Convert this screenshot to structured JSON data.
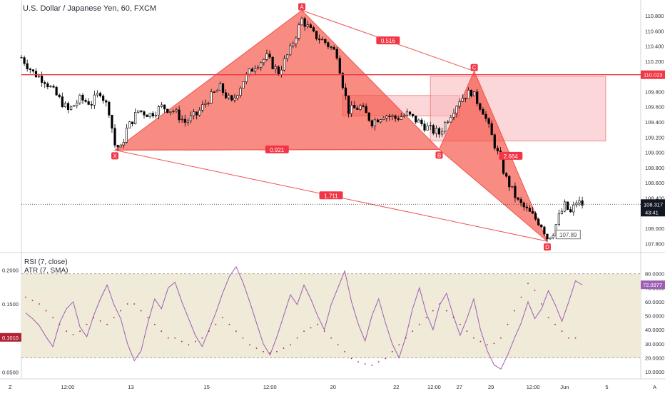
{
  "header": {
    "title": "U.S. Dollar / Japanese Yen, 60, FXCM"
  },
  "colors": {
    "pattern_fill": "#f44336",
    "pattern_line": "#ef5350",
    "resistance_line": "#f23645",
    "zone_fill": "#f7b7b9",
    "rsi_line": "#9c5fb5",
    "atr_dots": "#b22234",
    "band_fill": "#f0ead8",
    "candle": "#000000",
    "axis_text": "#2a2e39"
  },
  "chart_data": [
    {
      "type": "candlestick",
      "title": "U.S. Dollar / Japanese Yen, 60, FXCM",
      "ylim": [
        107.7,
        110.95
      ],
      "x_ticks": [
        "12:00",
        "13",
        "15",
        "12:00",
        "20",
        "22",
        "12:00",
        "27",
        "29",
        "12:00",
        "Jun",
        "5",
        "12:00"
      ],
      "y_ticks": [
        "110.800",
        "110.600",
        "110.400",
        "110.200",
        "109.800",
        "109.600",
        "109.400",
        "109.200",
        "109.000",
        "108.800",
        "108.600",
        "108.400",
        "108.000",
        "107.800"
      ],
      "close_path": [
        [
          0,
          110.25
        ],
        [
          4,
          110.05
        ],
        [
          8,
          109.95
        ],
        [
          12,
          109.75
        ],
        [
          16,
          109.55
        ],
        [
          20,
          109.7
        ],
        [
          24,
          109.65
        ],
        [
          27,
          109.8
        ],
        [
          30,
          109.55
        ],
        [
          32,
          109.1
        ],
        [
          34,
          109.05
        ],
        [
          36,
          109.3
        ],
        [
          40,
          109.55
        ],
        [
          44,
          109.5
        ],
        [
          48,
          109.6
        ],
        [
          52,
          109.55
        ],
        [
          56,
          109.4
        ],
        [
          60,
          109.5
        ],
        [
          64,
          109.7
        ],
        [
          68,
          109.85
        ],
        [
          72,
          109.65
        ],
        [
          76,
          109.95
        ],
        [
          80,
          110.15
        ],
        [
          84,
          110.25
        ],
        [
          88,
          110.05
        ],
        [
          92,
          110.35
        ],
        [
          96,
          110.75
        ],
        [
          100,
          110.55
        ],
        [
          104,
          110.45
        ],
        [
          108,
          110.3
        ],
        [
          110,
          109.9
        ],
        [
          112,
          109.55
        ],
        [
          116,
          109.6
        ],
        [
          120,
          109.4
        ],
        [
          124,
          109.5
        ],
        [
          128,
          109.45
        ],
        [
          132,
          109.5
        ],
        [
          136,
          109.4
        ],
        [
          140,
          109.3
        ],
        [
          143,
          109.25
        ],
        [
          146,
          109.45
        ],
        [
          150,
          109.7
        ],
        [
          154,
          109.8
        ],
        [
          158,
          109.55
        ],
        [
          162,
          109.1
        ],
        [
          166,
          108.65
        ],
        [
          170,
          108.35
        ],
        [
          174,
          108.2
        ],
        [
          178,
          108.05
        ],
        [
          180,
          107.88
        ],
        [
          182,
          107.95
        ],
        [
          184,
          108.15
        ],
        [
          186,
          108.3
        ],
        [
          188,
          108.2
        ],
        [
          190,
          108.35
        ],
        [
          192,
          108.317
        ]
      ],
      "current_price": "108.317",
      "countdown": "43:41",
      "resistance_level": "110.023",
      "harmonic_pattern": {
        "points": [
          {
            "label": "X",
            "t": 32,
            "price": 109.03
          },
          {
            "label": "A",
            "t": 96,
            "price": 110.87
          },
          {
            "label": "B",
            "t": 143,
            "price": 109.04
          },
          {
            "label": "C",
            "t": 155,
            "price": 110.07
          },
          {
            "label": "D",
            "t": 180,
            "price": 107.83
          }
        ],
        "ratios": {
          "XAB": "0.921",
          "XAD": "1.711",
          "AC": "0.516",
          "BCD": "2.664"
        },
        "box_value": "107.89"
      },
      "zones": [
        {
          "t0": 110,
          "t1": 150,
          "p0": 109.48,
          "p1": 109.75
        },
        {
          "t0": 140,
          "t1": 200,
          "p0": 109.15,
          "p1": 110.0
        }
      ]
    },
    {
      "type": "line",
      "series": [
        {
          "name": "RSI (7, close)",
          "axis": "right",
          "values": [
            52,
            48,
            43,
            35,
            28,
            45,
            55,
            60,
            42,
            35,
            50,
            62,
            72,
            58,
            48,
            30,
            18,
            25,
            45,
            62,
            55,
            70,
            74,
            60,
            48,
            36,
            28,
            40,
            52,
            66,
            78,
            85,
            74,
            60,
            45,
            30,
            22,
            35,
            50,
            65,
            58,
            72,
            62,
            50,
            40,
            58,
            70,
            82,
            60,
            44,
            32,
            50,
            62,
            45,
            30,
            20,
            35,
            55,
            70,
            52,
            40,
            58,
            66,
            50,
            36,
            48,
            62,
            40,
            25,
            15,
            12,
            22,
            34,
            45,
            60,
            48,
            55,
            68,
            58,
            46,
            60,
            75,
            72
          ]
        },
        {
          "name": "ATR (7, SMA)",
          "axis": "left",
          "values": [
            0.16,
            0.155,
            0.15,
            0.14,
            0.13,
            0.12,
            0.11,
            0.105,
            0.11,
            0.12,
            0.13,
            0.125,
            0.12,
            0.13,
            0.14,
            0.15,
            0.15,
            0.14,
            0.13,
            0.12,
            0.11,
            0.1,
            0.1,
            0.095,
            0.09,
            0.095,
            0.1,
            0.11,
            0.12,
            0.13,
            0.12,
            0.11,
            0.1,
            0.09,
            0.085,
            0.08,
            0.078,
            0.08,
            0.085,
            0.09,
            0.1,
            0.11,
            0.115,
            0.12,
            0.11,
            0.1,
            0.09,
            0.08,
            0.07,
            0.065,
            0.062,
            0.06,
            0.065,
            0.07,
            0.08,
            0.09,
            0.1,
            0.11,
            0.12,
            0.13,
            0.14,
            0.15,
            0.14,
            0.13,
            0.12,
            0.11,
            0.1,
            0.095,
            0.09,
            0.092,
            0.1,
            0.12,
            0.14,
            0.16,
            0.18,
            0.17,
            0.15,
            0.13,
            0.12,
            0.11,
            0.1,
            0.1
          ]
        }
      ],
      "right_ylim": [
        5,
        90
      ],
      "left_ylim": [
        0.04,
        0.215
      ],
      "right_ticks": [
        "80.0000",
        "70.0000",
        "60.0000",
        "50.0000",
        "40.0000",
        "30.0000",
        "20.0000",
        "10.0000"
      ],
      "left_ticks": [
        "0.2000",
        "0.1500",
        "0.0500"
      ],
      "band": [
        20,
        80
      ],
      "rsi_value": "72.0977",
      "atr_value": "0.1010"
    }
  ],
  "axis_corner": {
    "left_glyph": "Z",
    "right_glyph": "A"
  }
}
